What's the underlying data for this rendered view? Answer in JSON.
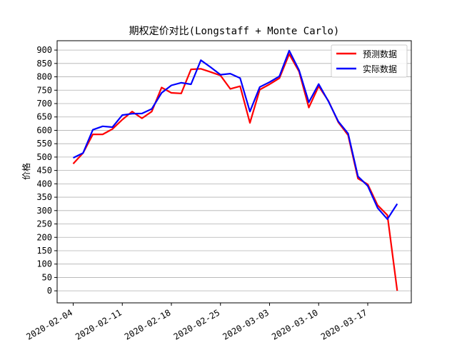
{
  "chart_data": {
    "type": "line",
    "title": "期权定价对比(Longstaff + Monte Carlo)",
    "xlabel": "",
    "ylabel": "价格",
    "x": [
      "2020-02-04",
      "2020-02-05",
      "2020-02-06",
      "2020-02-07",
      "2020-02-10",
      "2020-02-11",
      "2020-02-12",
      "2020-02-13",
      "2020-02-14",
      "2020-02-17",
      "2020-02-18",
      "2020-02-19",
      "2020-02-20",
      "2020-02-21",
      "2020-02-24",
      "2020-02-25",
      "2020-02-26",
      "2020-02-27",
      "2020-02-28",
      "2020-03-02",
      "2020-03-03",
      "2020-03-04",
      "2020-03-05",
      "2020-03-06",
      "2020-03-09",
      "2020-03-10",
      "2020-03-11",
      "2020-03-12",
      "2020-03-13",
      "2020-03-16",
      "2020-03-17",
      "2020-03-18",
      "2020-03-19",
      "2020-03-20"
    ],
    "x_ticks": [
      "2020-02-04",
      "2020-02-11",
      "2020-02-18",
      "2020-02-25",
      "2020-03-03",
      "2020-03-10",
      "2020-03-17"
    ],
    "y_ticks": [
      0,
      50,
      100,
      150,
      200,
      250,
      300,
      350,
      400,
      450,
      500,
      550,
      600,
      650,
      700,
      750,
      800,
      850,
      900
    ],
    "ylim": [
      -45,
      935
    ],
    "grid": "y",
    "legend_position": "top-right",
    "series": [
      {
        "name": "预测数据",
        "color": "#ff0000",
        "values": [
          475,
          515,
          585,
          585,
          605,
          640,
          670,
          645,
          670,
          760,
          740,
          738,
          828,
          830,
          818,
          805,
          755,
          765,
          628,
          752,
          772,
          795,
          885,
          820,
          685,
          765,
          710,
          630,
          582,
          420,
          398,
          320,
          283,
          0
        ]
      },
      {
        "name": "实际数据",
        "color": "#0000ff",
        "values": [
          497,
          515,
          602,
          615,
          612,
          657,
          662,
          663,
          680,
          740,
          768,
          778,
          772,
          862,
          836,
          808,
          812,
          795,
          670,
          762,
          780,
          802,
          898,
          825,
          705,
          773,
          708,
          633,
          588,
          428,
          392,
          310,
          268,
          325
        ]
      }
    ]
  }
}
